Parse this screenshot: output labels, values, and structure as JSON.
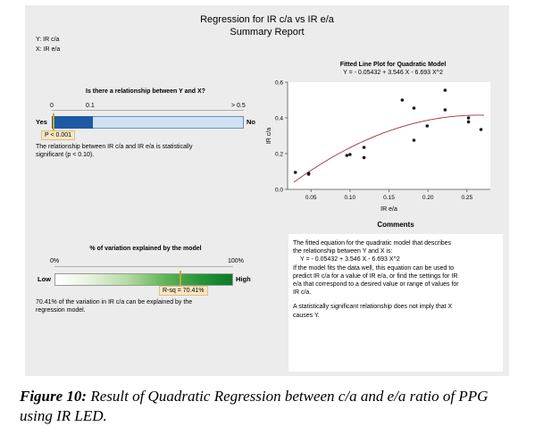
{
  "report": {
    "title": "Regression for IR c/a vs IR e/a",
    "subtitle": "Summary Report",
    "y_var": "Y: IR c/a",
    "x_var": "X: IR e/a"
  },
  "relationship": {
    "question": "Is there a relationship between Y and X?",
    "scale_ticks": [
      "0",
      "0.1",
      "> 0.5"
    ],
    "yes_label": "Yes",
    "no_label": "No",
    "p_label": "P < 0.001",
    "p_value_fraction_of_scale": 0.0,
    "statement_line1": "The relationship between IR c/a and IR e/a is statistically",
    "statement_line2": "significant (p < 0.10)."
  },
  "variation": {
    "title": "% of variation explained by the model",
    "tick_0": "0%",
    "tick_100": "100%",
    "low_label": "Low",
    "high_label": "High",
    "r2_label": "R-sq = 70.41%",
    "r2_value": 0.7041,
    "statement_line1": "70.41% of the variation in IR c/a can be explained by the",
    "statement_line2": "regression model."
  },
  "chart_data": {
    "type": "scatter",
    "title": "Fitted Line Plot for Quadratic Model",
    "subtitle": "Y = - 0.05432 + 3.546 X - 6.693 X^2",
    "xlabel": "IR e/a",
    "ylabel": "IR c/a",
    "xlim": [
      0.02,
      0.28
    ],
    "ylim": [
      0.0,
      0.6
    ],
    "x_ticks": [
      0.05,
      0.1,
      0.15,
      0.2,
      0.25
    ],
    "x_tick_labels": [
      "0.05",
      "0.10",
      "0.15",
      "0.20",
      "0.25"
    ],
    "y_ticks": [
      0.0,
      0.2,
      0.4,
      0.6
    ],
    "y_tick_labels": [
      "0.0",
      "0.2",
      "0.4",
      "0.6"
    ],
    "grid": false,
    "points": [
      {
        "x": 0.03,
        "y": 0.095
      },
      {
        "x": 0.047,
        "y": 0.085
      },
      {
        "x": 0.047,
        "y": 0.09
      },
      {
        "x": 0.096,
        "y": 0.19
      },
      {
        "x": 0.1,
        "y": 0.195
      },
      {
        "x": 0.118,
        "y": 0.235
      },
      {
        "x": 0.118,
        "y": 0.178
      },
      {
        "x": 0.167,
        "y": 0.5
      },
      {
        "x": 0.182,
        "y": 0.455
      },
      {
        "x": 0.182,
        "y": 0.275
      },
      {
        "x": 0.199,
        "y": 0.355
      },
      {
        "x": 0.222,
        "y": 0.555
      },
      {
        "x": 0.222,
        "y": 0.445
      },
      {
        "x": 0.252,
        "y": 0.4
      },
      {
        "x": 0.252,
        "y": 0.378
      },
      {
        "x": 0.268,
        "y": 0.335
      }
    ],
    "fit": {
      "intercept": -0.05432,
      "linear": 3.546,
      "quadratic": -6.693,
      "color": "#a0303a"
    },
    "point_color": "#1a1a1a"
  },
  "comments": {
    "title": "Comments",
    "para1": [
      "The fitted equation for the quadratic model that describes",
      "the relationship between Y and X is:",
      "Y = - 0.05432 + 3.546 X - 6.693 X^2",
      "If the model fits the data well, this equation can be used to",
      "predict IR c/a for a value of IR e/a, or find the settings for IR",
      "e/a that correspond to a desired value or range of values for",
      "IR c/a."
    ],
    "para2": [
      "A statistically significant relationship does not imply that X",
      "causes Y."
    ]
  },
  "caption": {
    "label": "Figure 10:",
    "text": " Result of Quadratic Regression between c/a and e/a ratio of PPG using IR LED."
  }
}
